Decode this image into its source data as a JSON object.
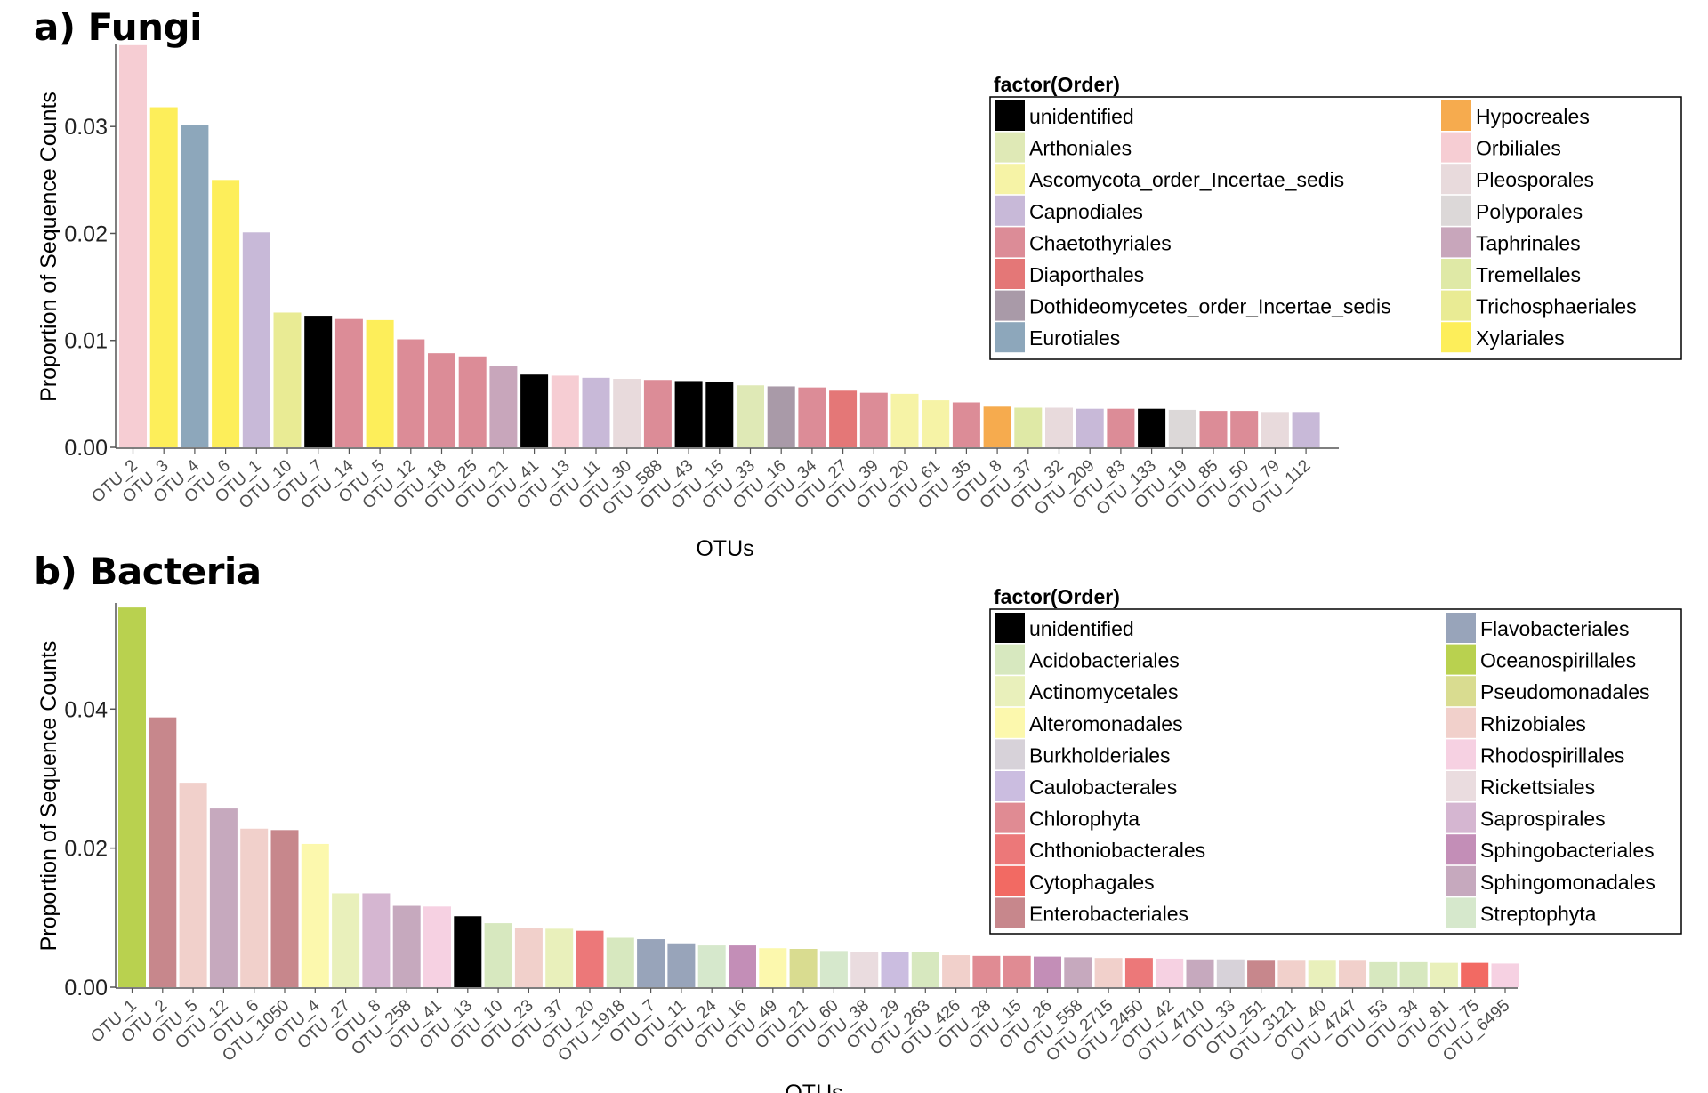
{
  "panels": {
    "a": {
      "label": "a) Fungi"
    },
    "b": {
      "label": "b) Bacteria"
    }
  },
  "chart_data": [
    {
      "type": "bar",
      "id": "fungi",
      "title": "a) Fungi",
      "xlabel": "OTUs",
      "ylabel": "Proportion of Sequence Counts",
      "ylim": [
        0,
        0.0375
      ],
      "yticks": [
        "0.00",
        "0.01",
        "0.02",
        "0.03"
      ],
      "grid": false,
      "legend_title": "factor(Order)",
      "legend_position": "top-right",
      "categories": [
        "OTU_2",
        "OTU_3",
        "OTU_4",
        "OTU_6",
        "OTU_1",
        "OTU_10",
        "OTU_7",
        "OTU_14",
        "OTU_5",
        "OTU_12",
        "OTU_18",
        "OTU_25",
        "OTU_21",
        "OTU_41",
        "OTU_13",
        "OTU_11",
        "OTU_30",
        "OTU_588",
        "OTU_43",
        "OTU_15",
        "OTU_33",
        "OTU_16",
        "OTU_34",
        "OTU_27",
        "OTU_39",
        "OTU_20",
        "OTU_61",
        "OTU_35",
        "OTU_8",
        "OTU_37",
        "OTU_32",
        "OTU_209",
        "OTU_83",
        "OTU_133",
        "OTU_19",
        "OTU_85",
        "OTU_50",
        "OTU_79",
        "OTU_112"
      ],
      "values": [
        0.0376,
        0.0318,
        0.0301,
        0.025,
        0.0201,
        0.0126,
        0.0123,
        0.012,
        0.0119,
        0.0101,
        0.0088,
        0.0085,
        0.0076,
        0.0068,
        0.0067,
        0.0065,
        0.0064,
        0.0063,
        0.0062,
        0.0061,
        0.0058,
        0.0057,
        0.0056,
        0.0053,
        0.0051,
        0.005,
        0.0044,
        0.0042,
        0.0038,
        0.0037,
        0.0037,
        0.0036,
        0.0036,
        0.0036,
        0.0035,
        0.0034,
        0.0034,
        0.0033,
        0.0033
      ],
      "orders": [
        "Orbiliales",
        "Xylariales",
        "Eurotiales",
        "Xylariales",
        "Capnodiales",
        "Trichosphaeriales",
        "unidentified",
        "Chaetothyriales",
        "Xylariales",
        "Chaetothyriales",
        "Chaetothyriales",
        "Chaetothyriales",
        "Taphrinales",
        "unidentified",
        "Orbiliales",
        "Capnodiales",
        "Pleosporales",
        "Chaetothyriales",
        "unidentified",
        "unidentified",
        "Arthoniales",
        "Dothideomycetes_order_Incertae_sedis",
        "Chaetothyriales",
        "Diaporthales",
        "Chaetothyriales",
        "Ascomycota_order_Incertae_sedis",
        "Ascomycota_order_Incertae_sedis",
        "Chaetothyriales",
        "Hypocreales",
        "Tremellales",
        "Pleosporales",
        "Capnodiales",
        "Chaetothyriales",
        "unidentified",
        "Polyporales",
        "Chaetothyriales",
        "Chaetothyriales",
        "Pleosporales",
        "Capnodiales"
      ],
      "legend_col1": [
        {
          "name": "unidentified",
          "color": "#000000"
        },
        {
          "name": "Arthoniales",
          "color": "#dfe9b6"
        },
        {
          "name": "Ascomycota_order_Incertae_sedis",
          "color": "#f6f3a6"
        },
        {
          "name": "Capnodiales",
          "color": "#c8b9d8"
        },
        {
          "name": "Chaetothyriales",
          "color": "#dc8c97"
        },
        {
          "name": "Diaporthales",
          "color": "#e47777"
        },
        {
          "name": "Dothideomycetes_order_Incertae_sedis",
          "color": "#a99aa8"
        },
        {
          "name": "Eurotiales",
          "color": "#8da7bb"
        }
      ],
      "legend_col2": [
        {
          "name": "Hypocreales",
          "color": "#f6ab4e"
        },
        {
          "name": "Orbiliales",
          "color": "#f6cdd3"
        },
        {
          "name": "Pleosporales",
          "color": "#e8dadc"
        },
        {
          "name": "Polyporales",
          "color": "#dcd8d8"
        },
        {
          "name": "Taphrinales",
          "color": "#c8a6bb"
        },
        {
          "name": "Tremellales",
          "color": "#dfe9a6"
        },
        {
          "name": "Trichosphaeriales",
          "color": "#e9eb94"
        },
        {
          "name": "Xylariales",
          "color": "#fdee5a"
        }
      ]
    },
    {
      "type": "bar",
      "id": "bacteria",
      "title": "b) Bacteria",
      "xlabel": "OTUs",
      "ylabel": "Proportion of Sequence Counts",
      "ylim": [
        0,
        0.055
      ],
      "yticks": [
        "0.00",
        "0.02",
        "0.04"
      ],
      "grid": false,
      "legend_title": "factor(Order)",
      "legend_position": "top-right",
      "categories": [
        "OTU_1",
        "OTU_2",
        "OTU_5",
        "OTU_12",
        "OTU_6",
        "OTU_1050",
        "OTU_4",
        "OTU_27",
        "OTU_8",
        "OTU_258",
        "OTU_41",
        "OTU_13",
        "OTU_10",
        "OTU_23",
        "OTU_37",
        "OTU_20",
        "OTU_1918",
        "OTU_7",
        "OTU_11",
        "OTU_24",
        "OTU_16",
        "OTU_49",
        "OTU_21",
        "OTU_60",
        "OTU_38",
        "OTU_29",
        "OTU_263",
        "OTU_426",
        "OTU_28",
        "OTU_15",
        "OTU_26",
        "OTU_558",
        "OTU_2715",
        "OTU_2450",
        "OTU_42",
        "OTU_4710",
        "OTU_33",
        "OTU_251",
        "OTU_3121",
        "OTU_40",
        "OTU_4747",
        "OTU_53",
        "OTU_34",
        "OTU_81",
        "OTU_75",
        "OTU_6495"
      ],
      "values": [
        0.0546,
        0.0388,
        0.0294,
        0.0257,
        0.0228,
        0.0226,
        0.0206,
        0.0135,
        0.0135,
        0.0117,
        0.0116,
        0.0102,
        0.0092,
        0.0085,
        0.0084,
        0.0081,
        0.0071,
        0.0069,
        0.0063,
        0.006,
        0.006,
        0.0056,
        0.0055,
        0.0052,
        0.0051,
        0.005,
        0.005,
        0.0046,
        0.0045,
        0.0045,
        0.0044,
        0.0043,
        0.0042,
        0.0042,
        0.0041,
        0.004,
        0.004,
        0.0038,
        0.0038,
        0.0038,
        0.0038,
        0.0036,
        0.0036,
        0.0035,
        0.0035,
        0.0034
      ],
      "orders": [
        "Oceanospirillales",
        "Enterobacteriales",
        "Rhizobiales",
        "Sphingomonadales",
        "Rhizobiales",
        "Enterobacteriales",
        "Alteromonadales",
        "Actinomycetales",
        "Saprospirales",
        "Sphingomonadales",
        "Rhodospirillales",
        "unidentified",
        "Acidobacteriales",
        "Rhizobiales",
        "Actinomycetales",
        "Chthoniobacterales",
        "Acidobacteriales",
        "Flavobacteriales",
        "Flavobacteriales",
        "Streptophyta",
        "Sphingobacteriales",
        "Alteromonadales",
        "Pseudomonadales",
        "Streptophyta",
        "Rickettsiales",
        "Caulobacterales",
        "Acidobacteriales",
        "Rhizobiales",
        "Chlorophyta",
        "Chlorophyta",
        "Sphingobacteriales",
        "Sphingomonadales",
        "Rhizobiales",
        "Chthoniobacterales",
        "Rhodospirillales",
        "Sphingomonadales",
        "Burkholderiales",
        "Enterobacteriales",
        "Rhizobiales",
        "Actinomycetales",
        "Rhizobiales",
        "Acidobacteriales",
        "Acidobacteriales",
        "Actinomycetales",
        "Cytophagales",
        "Rhodospirillales"
      ],
      "legend_col1": [
        {
          "name": "unidentified",
          "color": "#000000"
        },
        {
          "name": "Acidobacteriales",
          "color": "#d7e8bf"
        },
        {
          "name": "Actinomycetales",
          "color": "#e9f0bb"
        },
        {
          "name": "Alteromonadales",
          "color": "#fcf8ad"
        },
        {
          "name": "Burkholderiales",
          "color": "#d7d2d9"
        },
        {
          "name": "Caulobacterales",
          "color": "#cbbde0"
        },
        {
          "name": "Chlorophyta",
          "color": "#e08b93"
        },
        {
          "name": "Chthoniobacterales",
          "color": "#ec7879"
        },
        {
          "name": "Cytophagales",
          "color": "#f26a63"
        },
        {
          "name": "Enterobacteriales",
          "color": "#c7878c"
        }
      ],
      "legend_col2": [
        {
          "name": "Flavobacteriales",
          "color": "#98a4ba"
        },
        {
          "name": "Oceanospirillales",
          "color": "#b9d14f"
        },
        {
          "name": "Pseudomonadales",
          "color": "#d9dc90"
        },
        {
          "name": "Rhizobiales",
          "color": "#f1d0cb"
        },
        {
          "name": "Rhodospirillales",
          "color": "#f6d1e2"
        },
        {
          "name": "Rickettsiales",
          "color": "#eadcdf"
        },
        {
          "name": "Saprospirales",
          "color": "#d5b6d1"
        },
        {
          "name": "Sphingobacteriales",
          "color": "#c38eb7"
        },
        {
          "name": "Sphingomonadales",
          "color": "#c6a9be"
        },
        {
          "name": "Streptophyta",
          "color": "#d6e8cc"
        }
      ]
    }
  ]
}
